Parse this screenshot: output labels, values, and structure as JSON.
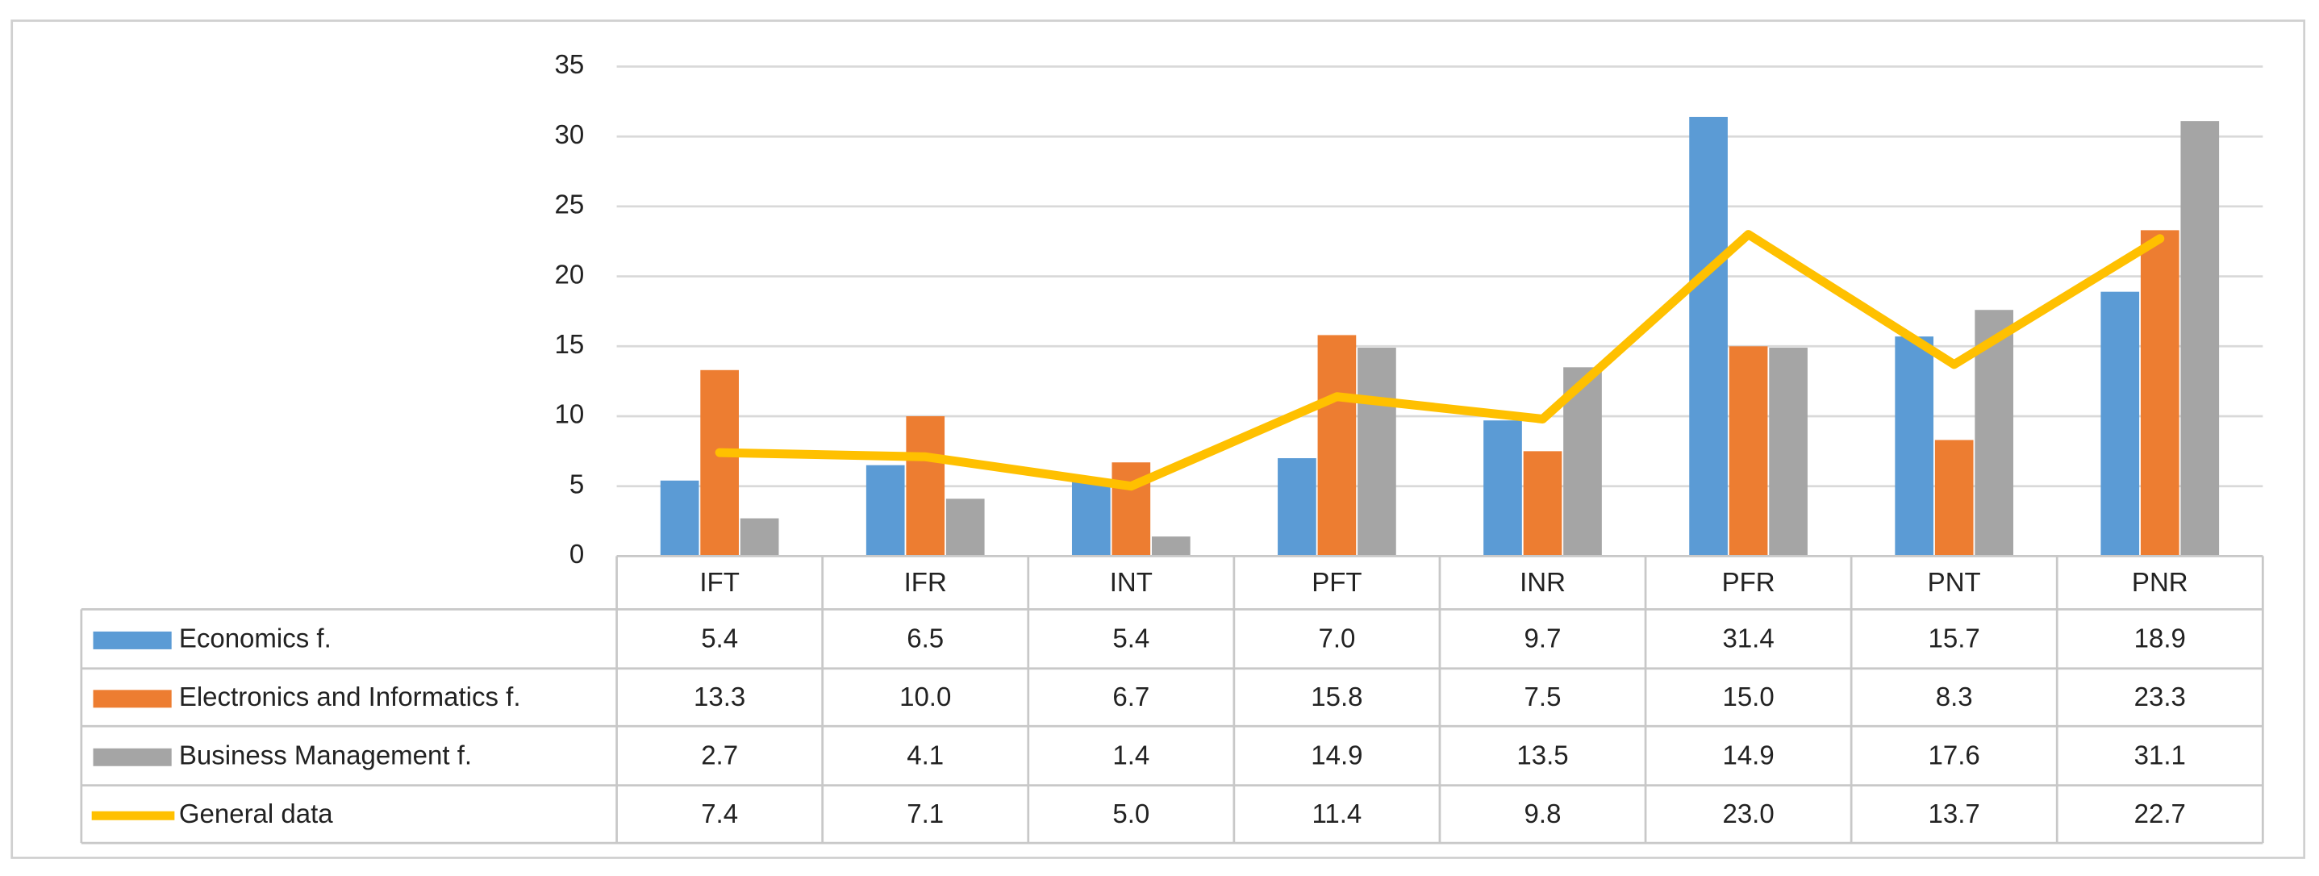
{
  "chart_data": {
    "type": "bar",
    "categories": [
      "IFT",
      "IFR",
      "INT",
      "PFT",
      "INR",
      "PFR",
      "PNT",
      "PNR"
    ],
    "ylim": [
      0,
      35
    ],
    "yticks": [
      0,
      5,
      10,
      15,
      20,
      25,
      30,
      35
    ],
    "grid": true,
    "series": [
      {
        "name": "Economics f.",
        "type": "bar",
        "color": "#5b9bd5",
        "values": [
          5.4,
          6.5,
          5.4,
          7.0,
          9.7,
          31.4,
          15.7,
          18.9
        ],
        "value_labels": [
          "5.4",
          "6.5",
          "5.4",
          "7.0",
          "9.7",
          "31.4",
          "15.7",
          "18.9"
        ]
      },
      {
        "name": "Electronics and Informatics f.",
        "type": "bar",
        "color": "#ed7d31",
        "values": [
          13.3,
          10.0,
          6.7,
          15.8,
          7.5,
          15.0,
          8.3,
          23.3
        ],
        "value_labels": [
          "13.3",
          "10.0",
          "6.7",
          "15.8",
          "7.5",
          "15.0",
          "8.3",
          "23.3"
        ]
      },
      {
        "name": "Business Management f.",
        "type": "bar",
        "color": "#a5a5a5",
        "values": [
          2.7,
          4.1,
          1.4,
          14.9,
          13.5,
          14.9,
          17.6,
          31.1
        ],
        "value_labels": [
          "2.7",
          "4.1",
          "1.4",
          "14.9",
          "13.5",
          "14.9",
          "17.6",
          "31.1"
        ]
      },
      {
        "name": "General data",
        "type": "line",
        "color": "#ffc000",
        "values": [
          7.4,
          7.1,
          5.0,
          11.4,
          9.8,
          23.0,
          13.7,
          22.7
        ],
        "value_labels": [
          "7.4",
          "7.1",
          "5.0",
          "11.4",
          "9.8",
          "23.0",
          "13.7",
          "22.7"
        ]
      }
    ]
  }
}
